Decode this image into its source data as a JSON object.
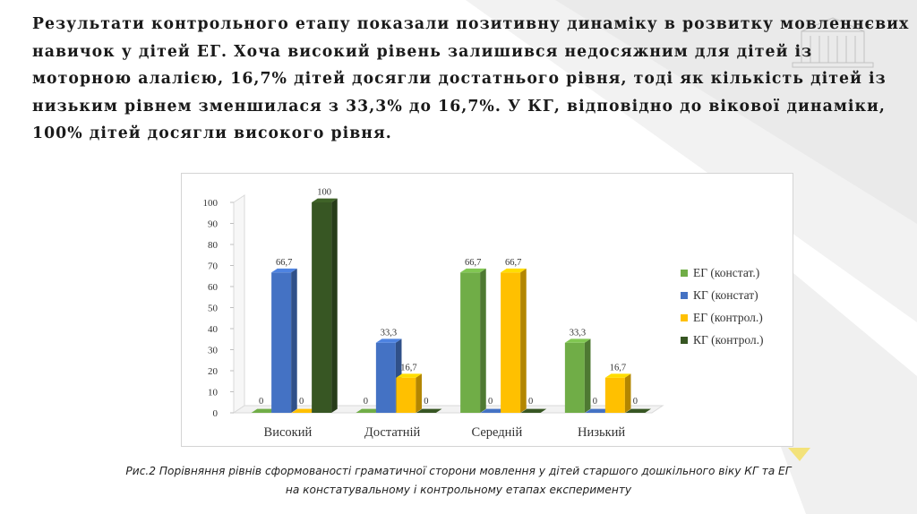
{
  "headline": "Результати контрольного етапу показали позитивну динаміку в розвитку мовленнєвих навичок у дітей ЕГ. Хоча високий рівень залишився недосяжним для дітей із моторною алалією, 16,7% дітей досягли достатнього рівня, тоді як кількість дітей із низьким рівнем зменшилася з 33,3% до 16,7%. У КГ, відповідно до вікової динаміки, 100% дітей досягли високого рівня.",
  "caption": {
    "line1": "Рис.2 Порівняння рівнів сформованості граматичної сторони мовлення у дітей старшого дошкільного віку КГ та ЕГ",
    "line2": "на констатувальному і контрольному етапах експерименту"
  },
  "colors": {
    "eg_const": "#70ad47",
    "kg_const": "#4472c4",
    "eg_control": "#ffc000",
    "kg_control": "#375623"
  },
  "chart_data": {
    "type": "bar",
    "title": "",
    "xlabel": "",
    "ylabel": "",
    "ylim": [
      0,
      100
    ],
    "yticks": [
      "0",
      "10",
      "20",
      "30",
      "40",
      "50",
      "60",
      "70",
      "80",
      "90",
      "100"
    ],
    "categories": [
      "Високий",
      "Достатній",
      "Середній",
      "Низький"
    ],
    "series": [
      {
        "name": "ЕГ (констат.)",
        "values": [
          0,
          0,
          66.7,
          33.3
        ],
        "labels": [
          "0",
          "0",
          "66,7",
          "33,3"
        ]
      },
      {
        "name": "КГ (констат)",
        "values": [
          66.7,
          33.3,
          0,
          0
        ],
        "labels": [
          "66,7",
          "33,3",
          "0",
          "0"
        ]
      },
      {
        "name": "ЕГ (контрол.)",
        "values": [
          0,
          16.7,
          66.7,
          16.7
        ],
        "labels": [
          "0",
          "16,7",
          "66,7",
          "16,7"
        ]
      },
      {
        "name": "КГ (контрол.)",
        "values": [
          100,
          0,
          0,
          0
        ],
        "labels": [
          "100",
          "0",
          "0",
          "0"
        ]
      }
    ],
    "legend": "right",
    "grid": false,
    "style": "3d-clustered"
  }
}
